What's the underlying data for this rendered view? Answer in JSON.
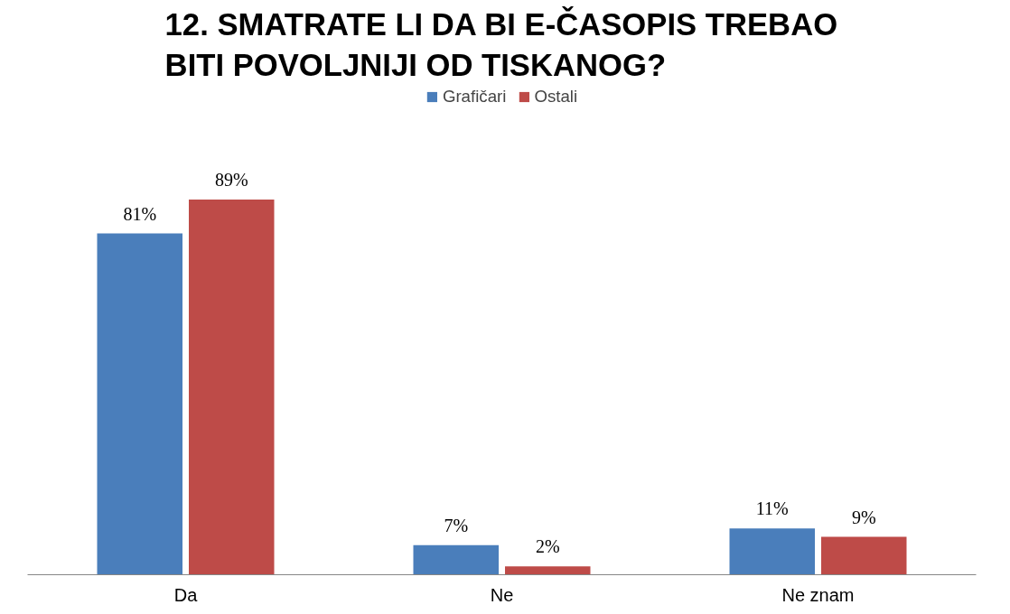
{
  "chart_data": {
    "type": "bar",
    "title": "12. SMATRATE LI DA BI E-ČASOPIS TREBAO\nBITI POVOLJNIJI OD TISKANOG?",
    "categories": [
      "Da",
      "Ne",
      "Ne znam"
    ],
    "series": [
      {
        "name": "Grafičari",
        "color": "#4a7ebb",
        "values": [
          81,
          7,
          11
        ],
        "value_labels": [
          "81%",
          "7%",
          "11%"
        ]
      },
      {
        "name": "Ostali",
        "color": "#be4b48",
        "values": [
          89,
          2,
          9
        ],
        "value_labels": [
          "89%",
          "2%",
          "9%"
        ]
      }
    ],
    "legend": "top",
    "grid": false
  }
}
